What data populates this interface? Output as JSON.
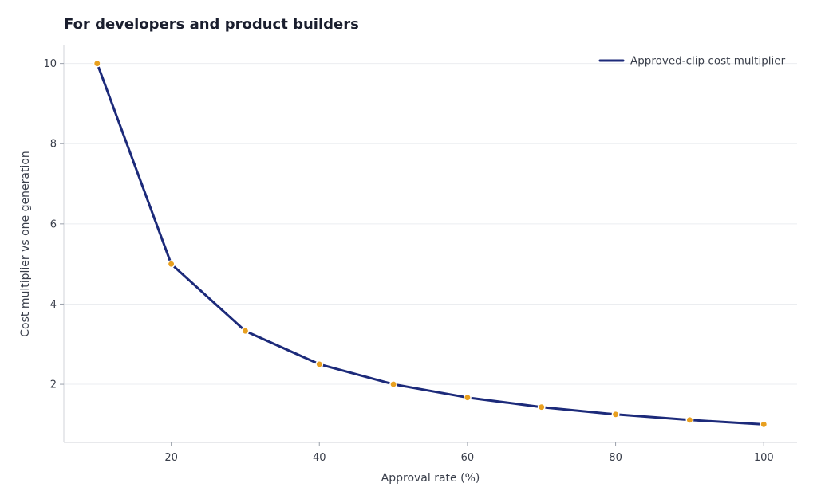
{
  "chart_data": {
    "type": "line",
    "title": "For developers and product builders",
    "xlabel": "Approval rate (%)",
    "ylabel": "Cost multiplier vs one generation",
    "xlim": [
      5.5,
      104.5
    ],
    "ylim": [
      0.55,
      10.45
    ],
    "x_ticks": [
      20,
      40,
      60,
      80,
      100
    ],
    "y_ticks": [
      2,
      4,
      6,
      8,
      10
    ],
    "grid": "horizontal",
    "legend_position": "top-right",
    "series": [
      {
        "name": "Approved-clip cost multiplier",
        "color": "#1c2a7a",
        "marker_color": "#e8a020",
        "x": [
          10,
          20,
          30,
          40,
          50,
          60,
          70,
          80,
          90,
          100
        ],
        "y": [
          10,
          5,
          3.33,
          2.5,
          2,
          1.67,
          1.43,
          1.25,
          1.11,
          1
        ]
      }
    ]
  }
}
